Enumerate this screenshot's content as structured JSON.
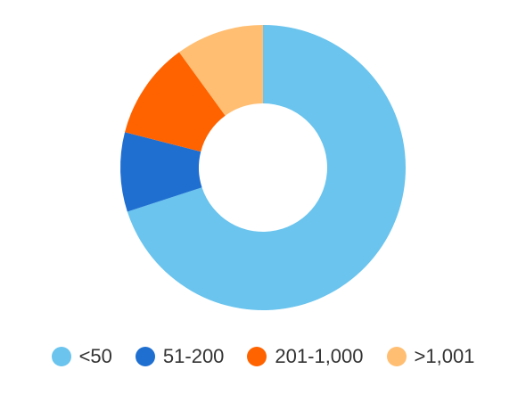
{
  "chart_data": {
    "type": "pie",
    "variant": "donut",
    "title": "",
    "categories": [
      "<50",
      "51-200",
      "201-1,000",
      ">1,001"
    ],
    "values": [
      70,
      9,
      11,
      10
    ],
    "unit": "%",
    "colors": [
      "#6ac4ee",
      "#1f6fd1",
      "#ff6300",
      "#ffbe72"
    ],
    "legend_position": "bottom",
    "start_angle_deg": 0,
    "direction": "clockwise"
  }
}
